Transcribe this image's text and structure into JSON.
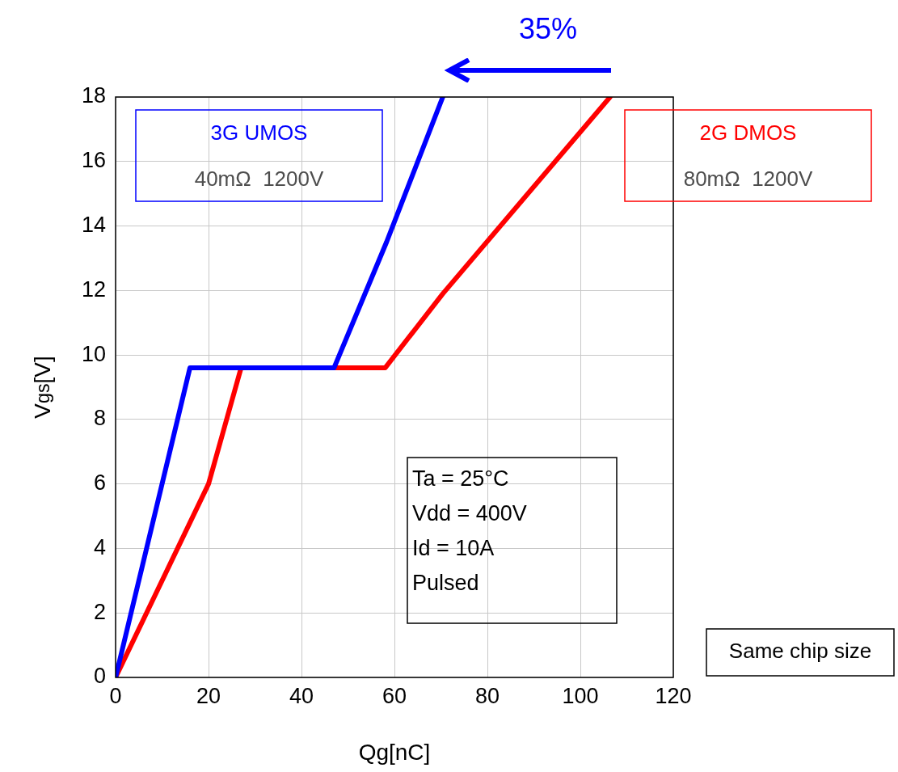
{
  "chart_data": {
    "type": "line",
    "xlabel": "Qg[nC]",
    "ylabel": "V$_{gs}$[V]",
    "xlim": [
      0,
      120
    ],
    "xticks": [
      0,
      20,
      40,
      60,
      80,
      100,
      120
    ],
    "ylim": [
      0,
      18
    ],
    "yticks": [
      0,
      2,
      4,
      6,
      8,
      10,
      12,
      14,
      16,
      18
    ],
    "grid": true,
    "legend": "top",
    "marker": "none",
    "line_style": "solid",
    "series": [
      {
        "name": "3G UMOS",
        "color": "#0000ff",
        "x": [
          0,
          16,
          47,
          58.3,
          70.4
        ],
        "values": [
          0,
          9.6,
          9.6,
          13.5,
          18
        ]
      },
      {
        "name": "2G DMOS",
        "color": "#ff0000",
        "x": [
          0,
          20,
          27,
          58,
          70.4,
          106.4
        ],
        "values": [
          0,
          6,
          9.6,
          9.6,
          11.9,
          18
        ]
      }
    ],
    "annotations": [
      "40mΩ  1200V",
      "80mΩ  1200V",
      "35%",
      "Ta = 25°C\nVdd = 400V\nId = 10A\nPulsed",
      "Same chip size"
    ]
  }
}
